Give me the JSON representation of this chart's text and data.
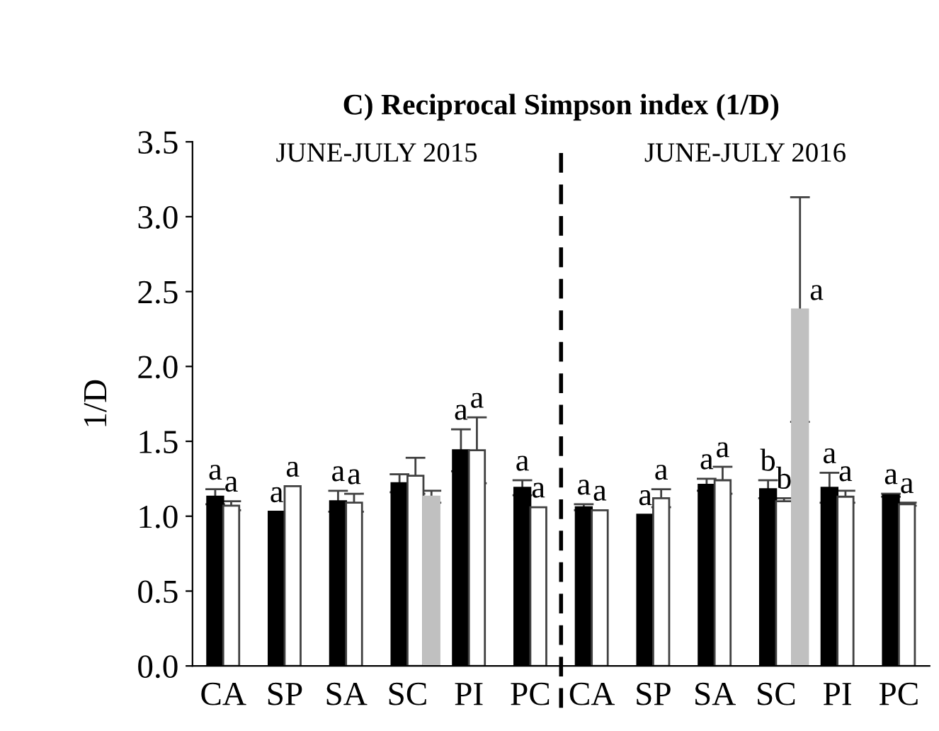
{
  "chart_data": {
    "type": "bar",
    "title": "C) Reciprocal Simpson index (1/D)",
    "ylabel": "1/D",
    "categories": [
      "CA",
      "SP",
      "SA",
      "SC",
      "PI",
      "PC",
      "CA",
      "SP",
      "SA",
      "SC",
      "PI",
      "PC"
    ],
    "series": [
      {
        "color": "#000000",
        "values": [
          1.13,
          1.03,
          1.1,
          1.22,
          1.44,
          1.19,
          1.06,
          1.01,
          1.21,
          1.18,
          1.19,
          1.14
        ],
        "errors": [
          0.05,
          null,
          0.07,
          0.06,
          0.14,
          0.05,
          0.02,
          null,
          0.04,
          0.06,
          0.1,
          0.01
        ],
        "value_labels": [
          "a",
          "a",
          "a",
          null,
          "a",
          "a",
          "a",
          "a",
          "a",
          "b",
          "a",
          "a"
        ]
      },
      {
        "color": "#ffffff",
        "values": [
          1.07,
          1.2,
          1.09,
          1.27,
          1.44,
          1.06,
          1.04,
          1.12,
          1.24,
          1.1,
          1.13,
          1.08
        ],
        "errors": [
          0.03,
          null,
          0.06,
          0.12,
          0.22,
          null,
          null,
          0.06,
          0.09,
          0.02,
          0.04,
          0.01
        ],
        "value_labels": [
          "a",
          "a",
          "a",
          null,
          "a",
          "a",
          "a",
          "a",
          "a",
          "b",
          "a",
          "a"
        ]
      },
      {
        "color": "#c0c0c0",
        "values": [
          null,
          null,
          null,
          1.13,
          null,
          null,
          null,
          null,
          null,
          2.38,
          null,
          null
        ],
        "errors": [
          null,
          null,
          null,
          0.04,
          null,
          null,
          null,
          null,
          null,
          0.75,
          null,
          null
        ],
        "value_labels": [
          null,
          null,
          null,
          null,
          null,
          null,
          null,
          null,
          null,
          "a",
          null,
          null
        ]
      }
    ],
    "ylim": [
      0,
      3.5
    ],
    "yticks": [
      {
        "value": 0,
        "label": "0.0"
      },
      {
        "value": 0.5,
        "label": "0.5"
      },
      {
        "value": 1,
        "label": "1.0"
      },
      {
        "value": 1.5,
        "label": "1.5"
      },
      {
        "value": 2,
        "label": "2.0"
      },
      {
        "value": 2.5,
        "label": "2.5"
      },
      {
        "value": 3,
        "label": "3.0"
      },
      {
        "value": 3.5,
        "label": "3.5"
      }
    ],
    "annotations": [
      "JUNE-JULY 2015",
      "JUNE-JULY 2016"
    ],
    "grid": false,
    "legend": false
  }
}
